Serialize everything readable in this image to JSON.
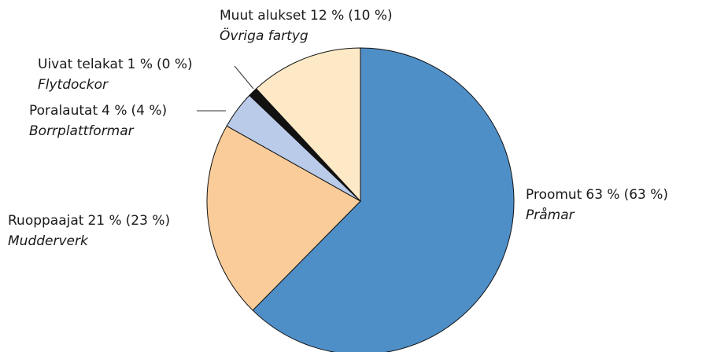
{
  "chart_data": {
    "type": "pie",
    "categories": [
      "Proomut",
      "Ruoppaajat",
      "Poralautat",
      "Uivat telakat",
      "Muut alukset"
    ],
    "values": [
      63,
      21,
      4,
      1,
      12
    ],
    "value_labels": [
      "63 %",
      "21 %",
      "4 %",
      "1 %",
      "12 %"
    ],
    "previous_value_labels": [
      "(63 %)",
      "(23 %)",
      "(4 %)",
      "(0 %)",
      "(10 %)"
    ],
    "translations": [
      "Pråmar",
      "Mudderverk",
      "Borrplattformar",
      "Flytdockor",
      "Övriga fartyg"
    ],
    "colors": [
      "#4f8fc8",
      "#f9cc9a",
      "#b9cbe8",
      "#111111",
      "#fde9c6"
    ]
  }
}
